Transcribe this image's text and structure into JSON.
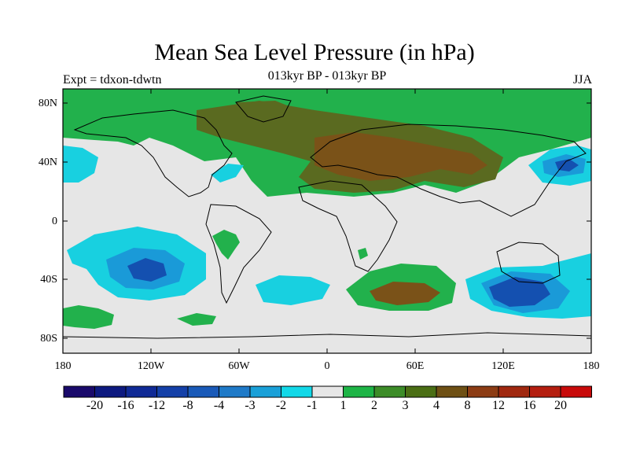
{
  "title": "Mean Sea Level Pressure (in hPa)",
  "subtitle": "013kyr BP - 013kyr BP",
  "left_label": "Expt = tdxon-tdwtn",
  "right_label": "JJA",
  "y_axis_labels": [
    "80N",
    "40N",
    "0",
    "40S",
    "80S"
  ],
  "x_axis_labels": [
    "180",
    "120W",
    "60W",
    "0",
    "60E",
    "120E",
    "180"
  ],
  "colorbar": {
    "labels": [
      "-20",
      "-16",
      "-12",
      "-8",
      "-4",
      "-3",
      "-2",
      "-1",
      "1",
      "2",
      "3",
      "4",
      "8",
      "12",
      "16",
      "20"
    ],
    "colors": [
      "#1a0a6b",
      "#0d1a80",
      "#102a96",
      "#1440a8",
      "#1a5ab8",
      "#1f7ac8",
      "#1aa0d8",
      "#12d8e8",
      "#e6e6e6",
      "#1eb446",
      "#3c8c28",
      "#4a6e14",
      "#6e5014",
      "#8c3c14",
      "#a0280f",
      "#b41e0f",
      "#c80a0a"
    ]
  },
  "colors": {
    "neutral": "#e6e6e6",
    "green": "#22b14c",
    "olive": "#5a6a20",
    "brown": "#7a5218",
    "cyan": "#18d0e0",
    "blue_mid": "#1a9ad8",
    "blue_dark": "#1450b0"
  }
}
